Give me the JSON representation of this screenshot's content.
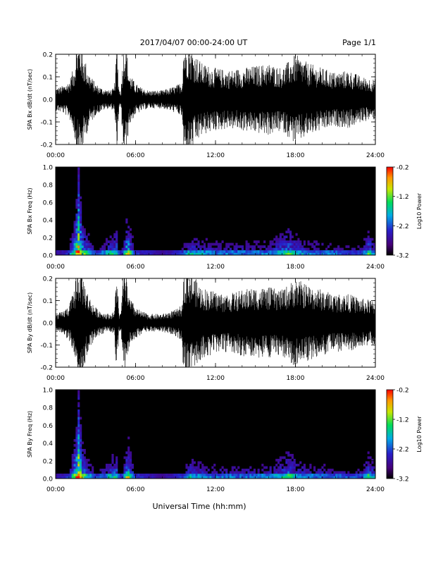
{
  "header": {
    "date_range": "2017/04/07  00:00-24:00 UT",
    "page": "Page 1/1"
  },
  "xlabel": "Universal Time (hh:mm)",
  "chart_data": [
    {
      "type": "line",
      "ylabel": "SPA Bx dB/dt (nT/sec)",
      "ylim": [
        -0.2,
        0.2
      ],
      "yticks": [
        "-0.2",
        "-0.1",
        "0.0",
        "0.1",
        "0.2"
      ],
      "xticks": [
        "00:00",
        "06:00",
        "12:00",
        "18:00",
        "24:00"
      ],
      "xlim_hours": [
        0,
        24
      ],
      "envelope_hours": [
        0,
        0.5,
        1,
        1.4,
        1.55,
        1.9,
        2.1,
        2.5,
        3,
        3.5,
        4,
        4.4,
        4.6,
        4.75,
        4.9,
        5.1,
        5.3,
        5.5,
        6,
        6.5,
        7,
        7.5,
        8,
        8.5,
        9,
        9.5,
        9.6,
        10,
        10.5,
        11,
        12,
        13,
        14,
        15,
        16,
        17,
        18,
        19,
        20,
        21,
        22,
        23,
        24
      ],
      "envelope_amp": [
        0.05,
        0.06,
        0.08,
        0.15,
        0.25,
        0.25,
        0.2,
        0.12,
        0.07,
        0.05,
        0.04,
        0.05,
        0.25,
        0.05,
        0.04,
        0.25,
        0.25,
        0.12,
        0.07,
        0.05,
        0.04,
        0.04,
        0.04,
        0.05,
        0.06,
        0.08,
        0.25,
        0.25,
        0.2,
        0.16,
        0.14,
        0.13,
        0.14,
        0.15,
        0.16,
        0.14,
        0.2,
        0.16,
        0.14,
        0.12,
        0.13,
        0.1,
        0.09
      ],
      "color": "#000000"
    },
    {
      "type": "heatmap",
      "ylabel": "SPA Bx Freq (Hz)",
      "ylim": [
        0,
        1.0
      ],
      "yticks": [
        "0.0",
        "0.2",
        "0.4",
        "0.6",
        "0.8",
        "1.0"
      ],
      "xticks": [
        "00:00",
        "06:00",
        "12:00",
        "18:00",
        "24:00"
      ],
      "xlim_hours": [
        0,
        24
      ],
      "colorbar": {
        "label": "Log10 Power",
        "range": [
          -3.2,
          -0.2
        ],
        "ticks": [
          "-0.2",
          "-1.2",
          "-2.2",
          "-3.2"
        ]
      },
      "activity_hours": [
        0,
        1,
        1.5,
        1.75,
        2,
        3,
        4.6,
        4.75,
        5,
        5.4,
        5.6,
        6,
        8,
        9.5,
        10,
        12,
        14,
        16,
        17.5,
        18,
        19,
        20,
        22,
        23,
        23.5,
        24
      ],
      "activity_level": [
        0.1,
        0.2,
        0.7,
        1.0,
        0.6,
        0.2,
        0.5,
        0.2,
        0.2,
        0.7,
        0.5,
        0.2,
        0.1,
        0.2,
        0.4,
        0.3,
        0.3,
        0.3,
        0.5,
        0.4,
        0.3,
        0.3,
        0.25,
        0.25,
        0.5,
        0.3
      ]
    },
    {
      "type": "line",
      "ylabel": "SPA By dB/dt (nT/sec)",
      "ylim": [
        -0.2,
        0.2
      ],
      "yticks": [
        "-0.2",
        "-0.1",
        "0.0",
        "0.1",
        "0.2"
      ],
      "xticks": [
        "00:00",
        "06:00",
        "12:00",
        "18:00",
        "24:00"
      ],
      "xlim_hours": [
        0,
        24
      ],
      "envelope_hours": [
        0,
        0.5,
        1,
        1.4,
        1.55,
        1.9,
        2.1,
        2.5,
        3,
        3.5,
        4,
        4.4,
        4.6,
        4.75,
        4.9,
        5.1,
        5.3,
        5.5,
        6,
        6.5,
        7,
        7.5,
        8,
        8.5,
        9,
        9.5,
        9.6,
        10,
        10.5,
        11,
        12,
        13,
        14,
        15,
        16,
        17,
        18,
        19,
        20,
        21,
        22,
        23,
        24
      ],
      "envelope_amp": [
        0.04,
        0.05,
        0.08,
        0.15,
        0.25,
        0.25,
        0.2,
        0.12,
        0.07,
        0.05,
        0.04,
        0.05,
        0.25,
        0.05,
        0.04,
        0.25,
        0.25,
        0.12,
        0.07,
        0.05,
        0.04,
        0.04,
        0.04,
        0.05,
        0.06,
        0.08,
        0.25,
        0.25,
        0.2,
        0.16,
        0.14,
        0.13,
        0.15,
        0.16,
        0.16,
        0.15,
        0.2,
        0.17,
        0.15,
        0.13,
        0.13,
        0.11,
        0.1
      ],
      "color": "#000000"
    },
    {
      "type": "heatmap",
      "ylabel": "SPA By Freq (Hz)",
      "ylim": [
        0,
        1.0
      ],
      "yticks": [
        "0.0",
        "0.2",
        "0.4",
        "0.6",
        "0.8",
        "1.0"
      ],
      "xticks": [
        "00:00",
        "06:00",
        "12:00",
        "18:00",
        "24:00"
      ],
      "xlim_hours": [
        0,
        24
      ],
      "colorbar": {
        "label": "Log10 Power",
        "range": [
          -3.2,
          -0.2
        ],
        "ticks": [
          "-0.2",
          "-1.2",
          "-2.2",
          "-3.2"
        ]
      },
      "activity_hours": [
        0,
        1,
        1.5,
        1.75,
        2,
        3,
        4.6,
        4.75,
        5,
        5.4,
        5.6,
        6,
        8,
        9.5,
        10,
        12,
        14,
        16,
        17.5,
        18,
        19,
        20,
        22,
        23,
        23.5,
        24
      ],
      "activity_level": [
        0.1,
        0.2,
        0.7,
        1.0,
        0.6,
        0.2,
        0.5,
        0.2,
        0.2,
        0.7,
        0.5,
        0.2,
        0.1,
        0.2,
        0.4,
        0.3,
        0.3,
        0.3,
        0.5,
        0.4,
        0.3,
        0.3,
        0.25,
        0.25,
        0.5,
        0.3
      ]
    }
  ]
}
